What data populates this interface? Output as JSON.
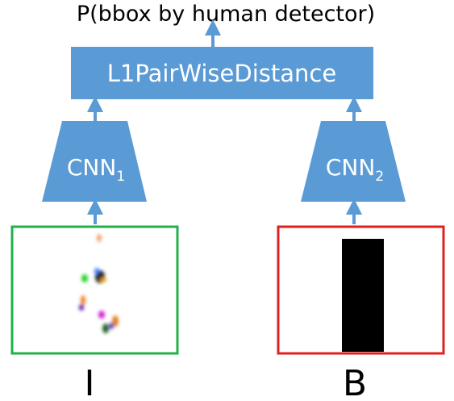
{
  "top_label": "P(bbox by human detector)",
  "distance_box": {
    "label": "L1PairWiseDistance",
    "fill": "#5b9bd5"
  },
  "cnn_left": {
    "base": "CNN",
    "sub": "1"
  },
  "cnn_right": {
    "base": "CNN",
    "sub": "2"
  },
  "arrow_color": "#5b9bd5",
  "input_left": {
    "label": "I",
    "border": "#22b14c"
  },
  "input_right": {
    "label": "B",
    "border": "#e02020"
  }
}
